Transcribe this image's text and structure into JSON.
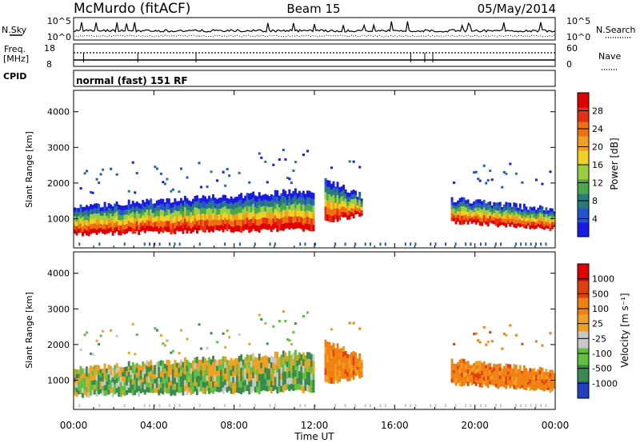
{
  "chart_data": {
    "type": "heatmap",
    "header": {
      "station": "McMurdo (fitACF)",
      "beam": "Beam 15",
      "date": "05/May/2014"
    },
    "strips": {
      "nsky_label": "N.Sky",
      "nsearch_label": "N.Search",
      "noise_ticks": [
        "10^5",
        "10^0"
      ],
      "freq_label": "Freq.",
      "freq_unit": "[MHz]",
      "freq_ticks": [
        "18",
        "8"
      ],
      "nave_label": "Nave",
      "nave_ticks": [
        "60",
        "0"
      ],
      "cpid_label": "CPID",
      "cpid_value": "normal (fast) 151 RF"
    },
    "x_axis": {
      "label": "Time UT",
      "ticks": [
        "00:00",
        "04:00",
        "08:00",
        "12:00",
        "16:00",
        "20:00",
        "00:00"
      ],
      "range_hours": [
        0,
        24
      ]
    },
    "panels": [
      {
        "name": "power",
        "ylabel": "Slant Range [km]",
        "yticks": [
          "4000",
          "3000",
          "2000",
          "1000"
        ],
        "ylim": [
          180,
          4600
        ],
        "colorbar": {
          "label": "Power [dB]",
          "ticks": [
            "28",
            "24",
            "20",
            "16",
            "12",
            "8",
            "4"
          ],
          "range": [
            0,
            32
          ],
          "colors": [
            "#1a1ae6",
            "#2255cc",
            "#2a7a7a",
            "#4aa84a",
            "#9ad040",
            "#f0d020",
            "#f0a020",
            "#f07010",
            "#e83010",
            "#e00000"
          ]
        }
      },
      {
        "name": "velocity",
        "ylabel": "Slant Range [km]",
        "yticks": [
          "4000",
          "3000",
          "2000",
          "1000"
        ],
        "ylim": [
          180,
          4600
        ],
        "colorbar": {
          "label": "Velocity [m s⁻¹]",
          "ticks": [
            "1000",
            "500",
            "100",
            "25",
            "-25",
            "-100",
            "-500",
            "-1000"
          ],
          "colors": [
            "#2040c0",
            "#3a8a50",
            "#60c040",
            "#c8c8c8",
            "#f0a020",
            "#f08010",
            "#e04010",
            "#e00000"
          ]
        }
      }
    ],
    "echo_regions": [
      {
        "t0": 0.0,
        "t1": 11.9,
        "low_km_start": 560,
        "low_km_end": 700,
        "high_km_start": 1350,
        "high_km_end": 1800
      },
      {
        "t0": 12.5,
        "t1": 14.3,
        "low_km_start": 900,
        "low_km_end": 1100,
        "high_km_start": 2100,
        "high_km_end": 1650
      },
      {
        "t0": 18.8,
        "t1": 24.0,
        "low_km_start": 900,
        "low_km_end": 700,
        "high_km_start": 1550,
        "high_km_end": 1250
      }
    ]
  }
}
